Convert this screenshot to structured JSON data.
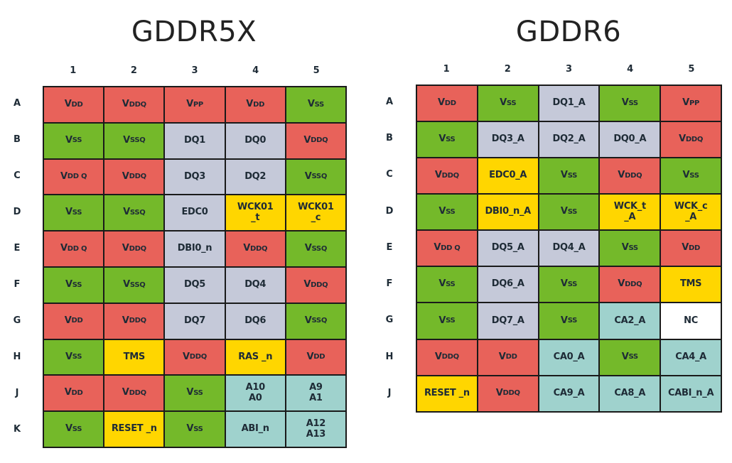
{
  "colors": {
    "p": "#e8625a",
    "g": "#74b92a",
    "d": "#c5c9d9",
    "y": "#ffd600",
    "t": "#9fd2cd",
    "w": "#ffffff"
  },
  "diagrams": [
    {
      "title": "GDDR5X",
      "columns": [
        "1",
        "2",
        "3",
        "4",
        "5"
      ],
      "rows": [
        "A",
        "B",
        "C",
        "D",
        "E",
        "F",
        "G",
        "H",
        "J",
        "K"
      ],
      "cells": [
        [
          [
            "V",
            "DD",
            "p"
          ],
          [
            "V",
            "DDQ",
            "p"
          ],
          [
            "V",
            "PP",
            "p"
          ],
          [
            "V",
            "DD",
            "p"
          ],
          [
            "V",
            "SS",
            "g"
          ]
        ],
        [
          [
            "V",
            "SS",
            "g"
          ],
          [
            "V",
            "SSQ",
            "g"
          ],
          [
            "DQ1",
            "",
            "d"
          ],
          [
            "DQ0",
            "",
            "d"
          ],
          [
            "V",
            "DDQ",
            "p"
          ]
        ],
        [
          [
            "V",
            "DD Q",
            "p"
          ],
          [
            "V",
            "DDQ",
            "p"
          ],
          [
            "DQ3",
            "",
            "d"
          ],
          [
            "DQ2",
            "",
            "d"
          ],
          [
            "V",
            "SSQ",
            "g"
          ]
        ],
        [
          [
            "V",
            "SS",
            "g"
          ],
          [
            "V",
            "SSQ",
            "g"
          ],
          [
            "EDC0",
            "",
            "d"
          ],
          [
            "WCK01\n_t",
            "",
            "y"
          ],
          [
            "WCK01\n_c",
            "",
            "y"
          ]
        ],
        [
          [
            "V",
            "DD Q",
            "p"
          ],
          [
            "V",
            "DDQ",
            "p"
          ],
          [
            "DBI0_n",
            "",
            "d"
          ],
          [
            "V",
            "DDQ",
            "p"
          ],
          [
            "V",
            "SSQ",
            "g"
          ]
        ],
        [
          [
            "V",
            "SS",
            "g"
          ],
          [
            "V",
            "SSQ",
            "g"
          ],
          [
            "DQ5",
            "",
            "d"
          ],
          [
            "DQ4",
            "",
            "d"
          ],
          [
            "V",
            "DDQ",
            "p"
          ]
        ],
        [
          [
            "V",
            "DD",
            "p"
          ],
          [
            "V",
            "DDQ",
            "p"
          ],
          [
            "DQ7",
            "",
            "d"
          ],
          [
            "DQ6",
            "",
            "d"
          ],
          [
            "V",
            "SSQ",
            "g"
          ]
        ],
        [
          [
            "V",
            "SS",
            "g"
          ],
          [
            "TMS",
            "",
            "y"
          ],
          [
            "V",
            "DDQ",
            "p"
          ],
          [
            "RAS _n",
            "",
            "y"
          ],
          [
            "V",
            "DD",
            "p"
          ]
        ],
        [
          [
            "V",
            "DD",
            "p"
          ],
          [
            "V",
            "DDQ",
            "p"
          ],
          [
            "V",
            "SS",
            "g"
          ],
          [
            "A10\nA0",
            "",
            "t"
          ],
          [
            "A9\nA1",
            "",
            "t"
          ]
        ],
        [
          [
            "V",
            "SS",
            "g"
          ],
          [
            "RESET _n",
            "",
            "y"
          ],
          [
            "V",
            "SS",
            "g"
          ],
          [
            "ABI_n",
            "",
            "t"
          ],
          [
            "A12\nA13",
            "",
            "t"
          ]
        ]
      ]
    },
    {
      "title": "GDDR6",
      "columns": [
        "1",
        "2",
        "3",
        "4",
        "5"
      ],
      "rows": [
        "A",
        "B",
        "C",
        "D",
        "E",
        "F",
        "G",
        "H",
        "J"
      ],
      "cells": [
        [
          [
            "V",
            "DD",
            "p"
          ],
          [
            "V",
            "SS",
            "g"
          ],
          [
            "DQ1_A",
            "",
            "d"
          ],
          [
            "V",
            "SS",
            "g"
          ],
          [
            "V",
            "PP",
            "p"
          ]
        ],
        [
          [
            "V",
            "SS",
            "g"
          ],
          [
            "DQ3_A",
            "",
            "d"
          ],
          [
            "DQ2_A",
            "",
            "d"
          ],
          [
            "DQ0_A",
            "",
            "d"
          ],
          [
            "V",
            "DDQ",
            "p"
          ]
        ],
        [
          [
            "V",
            "DDQ",
            "p"
          ],
          [
            "EDC0_A",
            "",
            "y"
          ],
          [
            "V",
            "SS",
            "g"
          ],
          [
            "V",
            "DDQ",
            "p"
          ],
          [
            "V",
            "SS",
            "g"
          ]
        ],
        [
          [
            "V",
            "SS",
            "g"
          ],
          [
            "DBI0_n_A",
            "",
            "y"
          ],
          [
            "V",
            "SS",
            "g"
          ],
          [
            "WCK_t\n_A",
            "",
            "y"
          ],
          [
            "WCK_c\n_A",
            "",
            "y"
          ]
        ],
        [
          [
            "V",
            "DD Q",
            "p"
          ],
          [
            "DQ5_A",
            "",
            "d"
          ],
          [
            "DQ4_A",
            "",
            "d"
          ],
          [
            "V",
            "SS",
            "g"
          ],
          [
            "V",
            "DD",
            "p"
          ]
        ],
        [
          [
            "V",
            "SS",
            "g"
          ],
          [
            "DQ6_A",
            "",
            "d"
          ],
          [
            "V",
            "SS",
            "g"
          ],
          [
            "V",
            "DDQ",
            "p"
          ],
          [
            "TMS",
            "",
            "y"
          ]
        ],
        [
          [
            "V",
            "SS",
            "g"
          ],
          [
            "DQ7_A",
            "",
            "d"
          ],
          [
            "V",
            "SS",
            "g"
          ],
          [
            "CA2_A",
            "",
            "t"
          ],
          [
            "NC",
            "",
            "w"
          ]
        ],
        [
          [
            "V",
            "DDQ",
            "p"
          ],
          [
            "V",
            "DD",
            "p"
          ],
          [
            "CA0_A",
            "",
            "t"
          ],
          [
            "V",
            "SS",
            "g"
          ],
          [
            "CA4_A",
            "",
            "t"
          ]
        ],
        [
          [
            "RESET _n",
            "",
            "y"
          ],
          [
            "V",
            "DDQ",
            "p"
          ],
          [
            "CA9_A",
            "",
            "t"
          ],
          [
            "CA8_A",
            "",
            "t"
          ],
          [
            "CABI_n_A",
            "",
            "t"
          ]
        ]
      ]
    }
  ]
}
